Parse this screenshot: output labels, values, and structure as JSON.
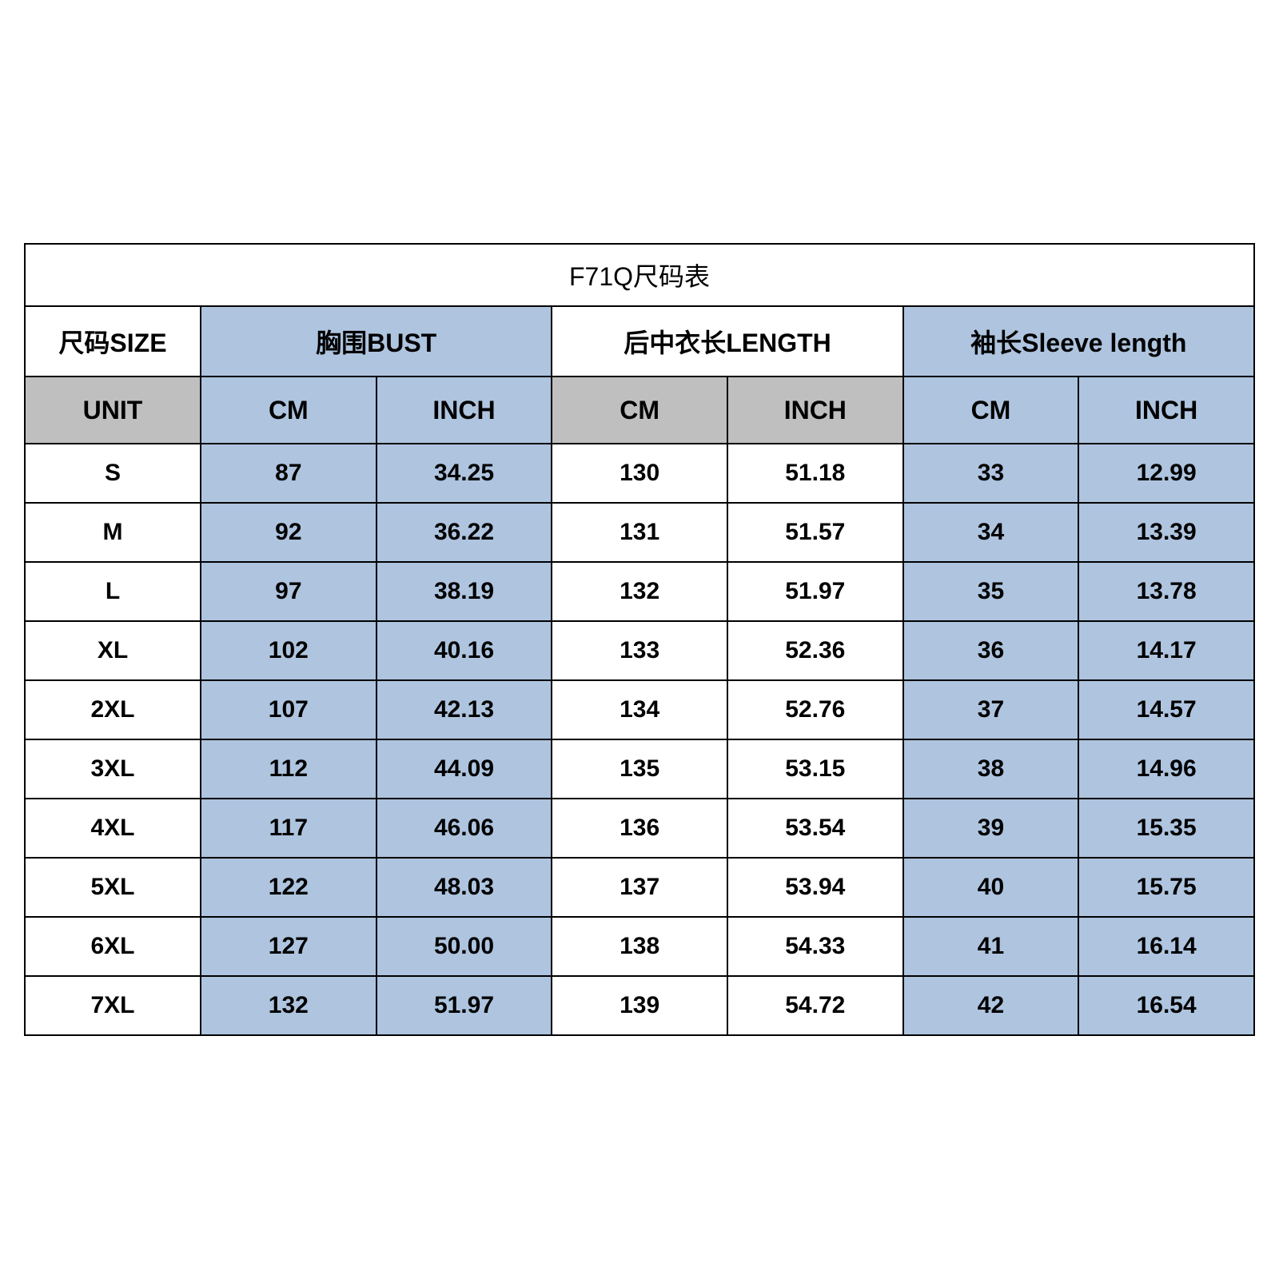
{
  "colors": {
    "blue": "#aec4df",
    "grey": "#bfbfbf",
    "white": "#ffffff",
    "border": "#000000",
    "text": "#000000"
  },
  "table": {
    "title": "F71Q尺码表",
    "size_header": "尺码SIZE",
    "unit_header": "UNIT",
    "groups": [
      {
        "label": "胸围BUST",
        "cm_label": "CM",
        "inch_label": "INCH",
        "fill": "blue"
      },
      {
        "label": "后中衣长LENGTH",
        "cm_label": "CM",
        "inch_label": "INCH",
        "fill": "white"
      },
      {
        "label": "袖长Sleeve length",
        "cm_label": "CM",
        "inch_label": "INCH",
        "fill": "blue"
      }
    ],
    "rows": [
      {
        "size": "S",
        "bust_cm": "87",
        "bust_in": "34.25",
        "len_cm": "130",
        "len_in": "51.18",
        "slv_cm": "33",
        "slv_in": "12.99"
      },
      {
        "size": "M",
        "bust_cm": "92",
        "bust_in": "36.22",
        "len_cm": "131",
        "len_in": "51.57",
        "slv_cm": "34",
        "slv_in": "13.39"
      },
      {
        "size": "L",
        "bust_cm": "97",
        "bust_in": "38.19",
        "len_cm": "132",
        "len_in": "51.97",
        "slv_cm": "35",
        "slv_in": "13.78"
      },
      {
        "size": "XL",
        "bust_cm": "102",
        "bust_in": "40.16",
        "len_cm": "133",
        "len_in": "52.36",
        "slv_cm": "36",
        "slv_in": "14.17"
      },
      {
        "size": "2XL",
        "bust_cm": "107",
        "bust_in": "42.13",
        "len_cm": "134",
        "len_in": "52.76",
        "slv_cm": "37",
        "slv_in": "14.57"
      },
      {
        "size": "3XL",
        "bust_cm": "112",
        "bust_in": "44.09",
        "len_cm": "135",
        "len_in": "53.15",
        "slv_cm": "38",
        "slv_in": "14.96"
      },
      {
        "size": "4XL",
        "bust_cm": "117",
        "bust_in": "46.06",
        "len_cm": "136",
        "len_in": "53.54",
        "slv_cm": "39",
        "slv_in": "15.35"
      },
      {
        "size": "5XL",
        "bust_cm": "122",
        "bust_in": "48.03",
        "len_cm": "137",
        "len_in": "53.94",
        "slv_cm": "40",
        "slv_in": "15.75"
      },
      {
        "size": "6XL",
        "bust_cm": "127",
        "bust_in": "50.00",
        "len_cm": "138",
        "len_in": "54.33",
        "slv_cm": "41",
        "slv_in": "16.14"
      },
      {
        "size": "7XL",
        "bust_cm": "132",
        "bust_in": "51.97",
        "len_cm": "139",
        "len_in": "54.72",
        "slv_cm": "42",
        "slv_in": "16.54"
      }
    ]
  }
}
